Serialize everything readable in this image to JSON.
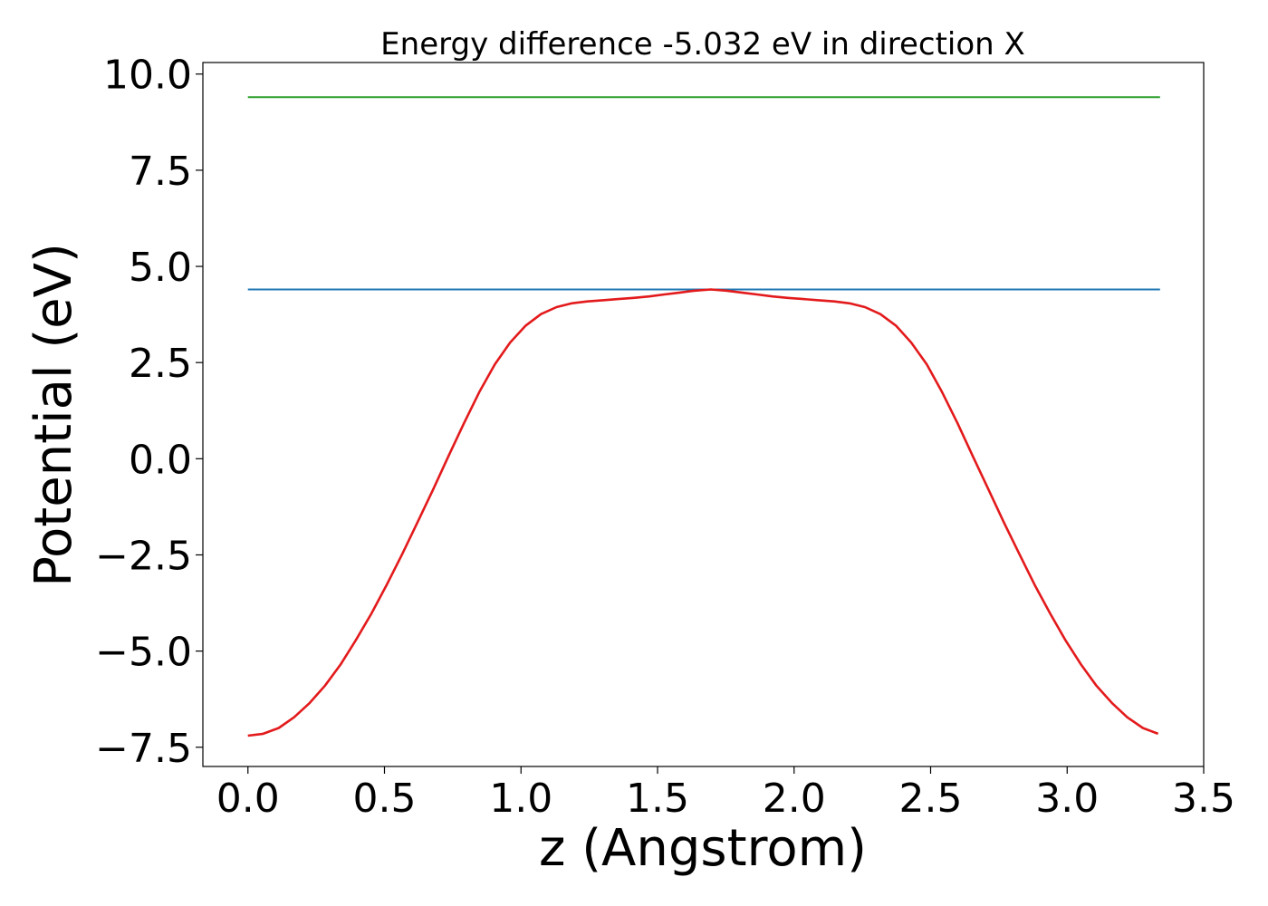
{
  "chart_data": {
    "type": "line",
    "title": "Energy difference -5.032 eV in direction X",
    "xlabel": "z (Angstrom)",
    "ylabel": "Potential (eV)",
    "xlim": [
      -0.165,
      3.5
    ],
    "ylim": [
      -8.0,
      10.3
    ],
    "xticks": [
      "0.0",
      "0.5",
      "1.0",
      "1.5",
      "2.0",
      "2.5",
      "3.0",
      "3.5"
    ],
    "yticks": [
      "10.0",
      "7.5",
      "5.0",
      "2.5",
      "0.0",
      "−2.5",
      "−5.0",
      "−7.5"
    ],
    "grid": false,
    "legend": "none",
    "series": [
      {
        "color": "#2ca02c",
        "x": [
          0.0,
          3.34
        ],
        "y": [
          9.4,
          9.4
        ]
      },
      {
        "color": "#1f77b4",
        "x": [
          0.0,
          3.34
        ],
        "y": [
          4.4,
          4.4
        ]
      },
      {
        "color": "#e31a1c",
        "x": [
          0.0,
          0.056,
          0.113,
          0.169,
          0.226,
          0.282,
          0.339,
          0.395,
          0.452,
          0.508,
          0.565,
          0.621,
          0.678,
          0.734,
          0.791,
          0.847,
          0.904,
          0.96,
          1.017,
          1.073,
          1.13,
          1.186,
          1.243,
          1.299,
          1.356,
          1.412,
          1.469,
          1.525,
          1.582,
          1.638,
          1.695,
          1.751,
          1.808,
          1.864,
          1.921,
          1.977,
          2.034,
          2.09,
          2.147,
          2.203,
          2.26,
          2.316,
          2.373,
          2.429,
          2.486,
          2.542,
          2.599,
          2.655,
          2.712,
          2.768,
          2.825,
          2.881,
          2.938,
          2.994,
          3.051,
          3.107,
          3.164,
          3.22,
          3.277,
          3.333
        ],
        "y": [
          -7.2,
          -7.15,
          -7.0,
          -6.72,
          -6.35,
          -5.9,
          -5.35,
          -4.72,
          -4.03,
          -3.28,
          -2.48,
          -1.65,
          -0.8,
          0.06,
          0.92,
          1.73,
          2.45,
          3.02,
          3.46,
          3.76,
          3.94,
          4.04,
          4.09,
          4.12,
          4.15,
          4.18,
          4.22,
          4.27,
          4.32,
          4.37,
          4.4,
          4.37,
          4.32,
          4.27,
          4.22,
          4.18,
          4.15,
          4.12,
          4.09,
          4.04,
          3.94,
          3.76,
          3.46,
          3.02,
          2.45,
          1.73,
          0.92,
          0.06,
          -0.8,
          -1.65,
          -2.48,
          -3.28,
          -4.03,
          -4.72,
          -5.35,
          -5.9,
          -6.35,
          -6.72,
          -7.0,
          -7.15
        ]
      }
    ]
  }
}
